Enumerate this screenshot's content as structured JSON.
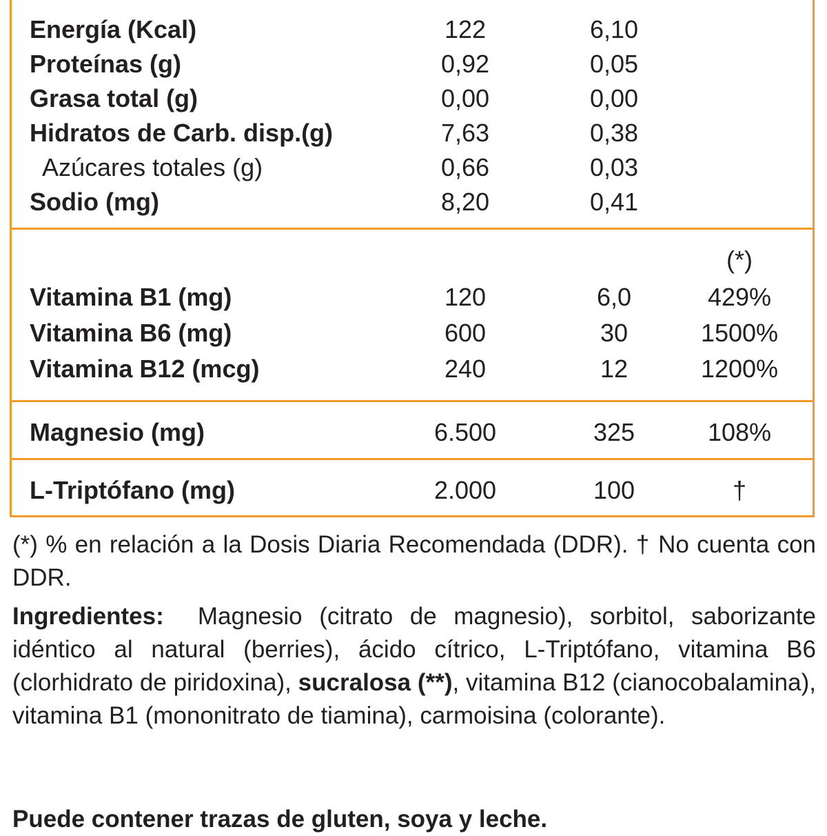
{
  "colors": {
    "border": "#f39a2b",
    "text": "#231f20"
  },
  "section1": [
    {
      "label": "Energía (Kcal)",
      "v1": "122",
      "v2": "6,10",
      "v3": ""
    },
    {
      "label": "Proteínas (g)",
      "v1": "0,92",
      "v2": "0,05",
      "v3": ""
    },
    {
      "label": "Grasa total (g)",
      "v1": "0,00",
      "v2": "0,00",
      "v3": ""
    },
    {
      "label": "Hidratos de Carb. disp.(g)",
      "v1": "7,63",
      "v2": "0,38",
      "v3": ""
    },
    {
      "label": "Azúcares totales (g)",
      "v1": "0,66",
      "v2": "0,03",
      "v3": ""
    },
    {
      "label": "Sodio (mg)",
      "v1": "8,20",
      "v2": "0,41",
      "v3": ""
    }
  ],
  "section2_marker": "(*)",
  "section2": [
    {
      "label": "Vitamina B1 (mg)",
      "v1": "120",
      "v2": "6,0",
      "v3": "429%"
    },
    {
      "label": "Vitamina B6 (mg)",
      "v1": "600",
      "v2": "30",
      "v3": "1500%"
    },
    {
      "label": "Vitamina B12 (mcg)",
      "v1": "240",
      "v2": "12",
      "v3": "1200%"
    }
  ],
  "section3": [
    {
      "label": "Magnesio (mg)",
      "v1": "6.500",
      "v2": "325",
      "v3": "108%"
    }
  ],
  "section4": [
    {
      "label": "L-Triptófano (mg)",
      "v1": "2.000",
      "v2": "100",
      "v3": "†"
    }
  ],
  "footnote": "(*) % en relación a la Dosis Diaria Recomendada (DDR). † No cuenta con DDR.",
  "ingredients": {
    "heading": "Ingredientes:",
    "part1": "Magnesio (citrato de magnesio), sorbitol, saborizante idéntico al natural (berries), ácido cítrico, L-Triptófano, vitamina B6 (clorhidrato de piridoxina),",
    "allergen": "sucralosa (**)",
    "part2": ", vitamina B12 (cianocobalamina), vitamina B1 (mononitrato de tiamina), carmoisina (colorante)."
  },
  "traces": "Puede contener trazas de gluten, soya y leche."
}
